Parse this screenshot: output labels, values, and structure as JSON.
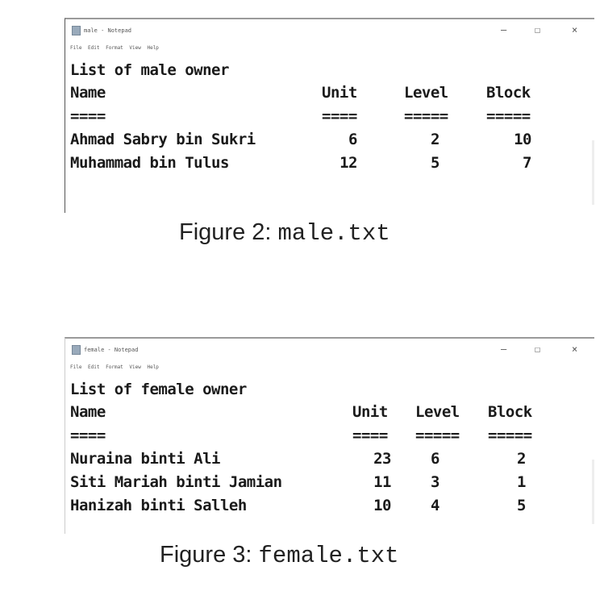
{
  "figure2": {
    "window_title": "male - Notepad",
    "menu": "File Edit Format View Help",
    "heading": "List of male owner",
    "columns": [
      "Name",
      "Unit",
      "Level",
      "Block"
    ],
    "underline": [
      "====",
      "====",
      "=====",
      "====="
    ],
    "rows": [
      [
        "Ahmad Sabry bin Sukri",
        "6",
        "2",
        "10"
      ],
      [
        "Muhammad bin Tulus",
        "12",
        "5",
        "7"
      ]
    ],
    "caption_label": "Figure 2:",
    "caption_file": "male.txt"
  },
  "figure3": {
    "window_title": "female - Notepad",
    "menu": "File Edit Format View Help",
    "heading": "List of female owner",
    "columns": [
      "Name",
      "Unit",
      "Level",
      "Block"
    ],
    "underline": [
      "====",
      "====",
      "=====",
      "====="
    ],
    "rows": [
      [
        "Nuraina binti Ali",
        "23",
        "6",
        "2"
      ],
      [
        "Siti Mariah binti Jamian",
        "11",
        "3",
        "1"
      ],
      [
        "Hanizah binti Salleh",
        "10",
        "4",
        "5"
      ]
    ],
    "caption_label": "Figure 3:",
    "caption_file": "female.txt"
  }
}
